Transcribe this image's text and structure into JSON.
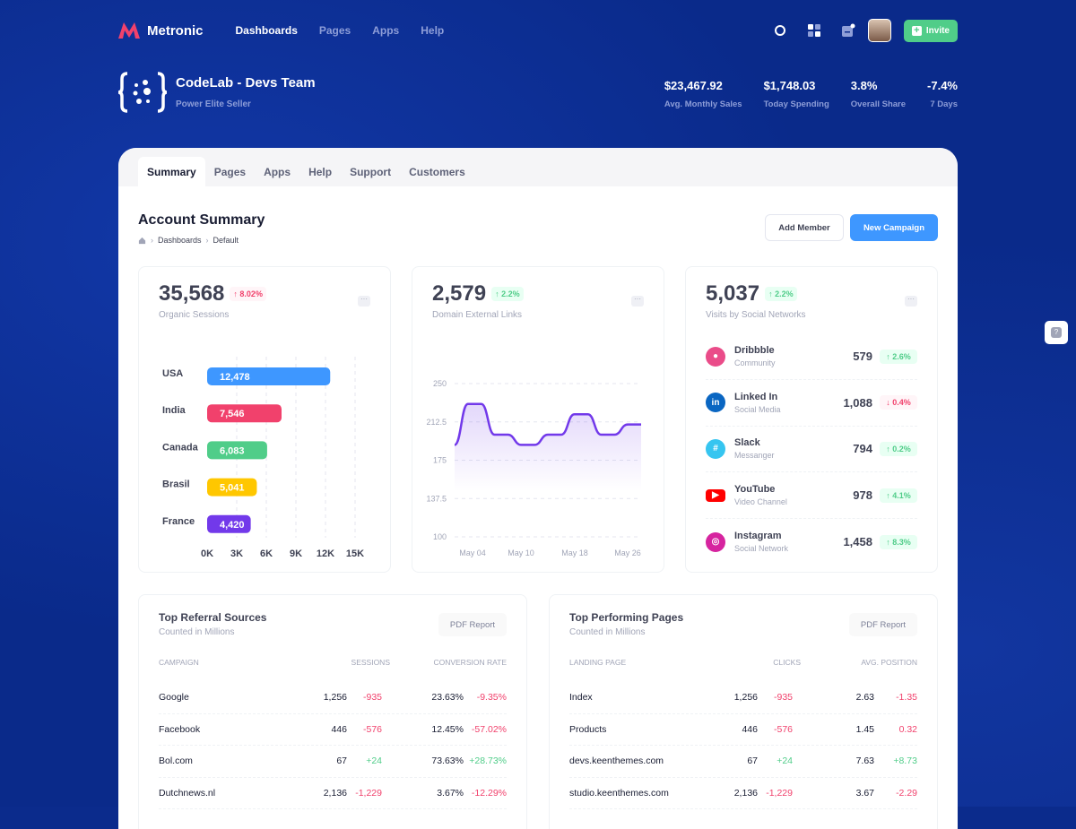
{
  "brand": {
    "name": "Metronic",
    "logo_color": "#f1416c"
  },
  "nav": {
    "items": [
      "Dashboards",
      "Pages",
      "Apps",
      "Help"
    ],
    "active": 0
  },
  "topbar": {
    "icons": [
      "search-icon",
      "apps-grid-icon",
      "notifications-icon"
    ],
    "invite_label": "Invite",
    "invite_color": "#50cd89"
  },
  "team": {
    "name": "CodeLab - Devs Team",
    "subtitle": "Power Elite Seller"
  },
  "stats": [
    {
      "value": "$23,467.92",
      "label": "Avg. Monthly Sales"
    },
    {
      "value": "$1,748.03",
      "label": "Today Spending"
    },
    {
      "value": "3.8%",
      "label": "Overall Share"
    },
    {
      "value": "-7.4%",
      "label": "7 Days"
    }
  ],
  "tabs": [
    "Summary",
    "Pages",
    "Apps",
    "Help",
    "Support",
    "Customers"
  ],
  "page": {
    "title": "Account Summary",
    "breadcrumb": [
      "Dashboards",
      "Default"
    ],
    "add_member": "Add Member",
    "new_campaign": "New Campaign",
    "accent": "#3e97ff"
  },
  "card1": {
    "value": "35,568",
    "change": "8.02%",
    "trend": "up-red",
    "label": "Organic Sessions"
  },
  "card2": {
    "value": "2,579",
    "change": "2.2%",
    "label": "Domain External Links"
  },
  "card3": {
    "value": "5,037",
    "change": "2.2%",
    "label": "Visits by Social Networks",
    "items": [
      {
        "name": "Dribbble",
        "desc": "Community",
        "value": "579",
        "change": "2.6%",
        "dir": "up",
        "icon": "dribbble-icon",
        "color": "#ea4c89"
      },
      {
        "name": "Linked In",
        "desc": "Social Media",
        "value": "1,088",
        "change": "0.4%",
        "dir": "down",
        "icon": "linkedin-icon",
        "color": "#0a66c2"
      },
      {
        "name": "Slack",
        "desc": "Messanger",
        "value": "794",
        "change": "0.2%",
        "dir": "up",
        "icon": "slack-icon",
        "color": "#36c5f0"
      },
      {
        "name": "YouTube",
        "desc": "Video Channel",
        "value": "978",
        "change": "4.1%",
        "dir": "up",
        "icon": "youtube-icon",
        "color": "#ff0000"
      },
      {
        "name": "Instagram",
        "desc": "Social Network",
        "value": "1,458",
        "change": "8.3%",
        "dir": "up",
        "icon": "instagram-icon",
        "color": "#d6249f"
      }
    ]
  },
  "chart_data": [
    {
      "type": "bar",
      "orientation": "horizontal",
      "categories": [
        "USA",
        "India",
        "Canada",
        "Brasil",
        "France"
      ],
      "values": [
        12478,
        7546,
        6083,
        5041,
        4420
      ],
      "data_labels": [
        "12,478",
        "7,546",
        "6,083",
        "5,041",
        "4,420"
      ],
      "colors": [
        "#3e97ff",
        "#f1416c",
        "#50cd89",
        "#ffc700",
        "#7239ea"
      ],
      "xlim": [
        0,
        15000
      ],
      "xticks": [
        "0K",
        "3K",
        "6K",
        "9K",
        "12K",
        "15K"
      ],
      "grid": true
    },
    {
      "type": "area",
      "x_labels": [
        "May 04",
        "May 10",
        "May 18",
        "May 26"
      ],
      "values": [
        190,
        230,
        230,
        200,
        200,
        190,
        190,
        200,
        200,
        220,
        220,
        200,
        200,
        210,
        210
      ],
      "ylim": [
        100,
        250
      ],
      "yticks": [
        "250",
        "212.5",
        "175",
        "137.5",
        "100"
      ],
      "color": "#7239ea",
      "grid": true
    }
  ],
  "referral": {
    "title": "Top Referral Sources",
    "subtitle": "Counted in Millions",
    "button": "PDF Report",
    "headers": [
      "CAMPAIGN",
      "SESSIONS",
      "CONVERSION RATE"
    ],
    "rows": [
      [
        "Google",
        "1,256",
        "-935",
        "23.63%",
        "-9.35%"
      ],
      [
        "Facebook",
        "446",
        "-576",
        "12.45%",
        "-57.02%"
      ],
      [
        "Bol.com",
        "67",
        "+24",
        "73.63%",
        "+28.73%"
      ],
      [
        "Dutchnews.nl",
        "2,136",
        "-1,229",
        "3.67%",
        "-12.29%"
      ]
    ]
  },
  "pages": {
    "title": "Top Performing Pages",
    "subtitle": "Counted in Millions",
    "button": "PDF Report",
    "headers": [
      "LANDING PAGE",
      "CLICKS",
      "AVG. POSITION"
    ],
    "rows": [
      [
        "Index",
        "1,256",
        "-935",
        "2.63",
        "-1.35"
      ],
      [
        "Products",
        "446",
        "-576",
        "1.45",
        "0.32"
      ],
      [
        "devs.keenthemes.com",
        "67",
        "+24",
        "7.63",
        "+8.73"
      ],
      [
        "studio.keenthemes.com",
        "2,136",
        "-1,229",
        "3.67",
        "-2.29"
      ]
    ]
  },
  "help_label": "?"
}
